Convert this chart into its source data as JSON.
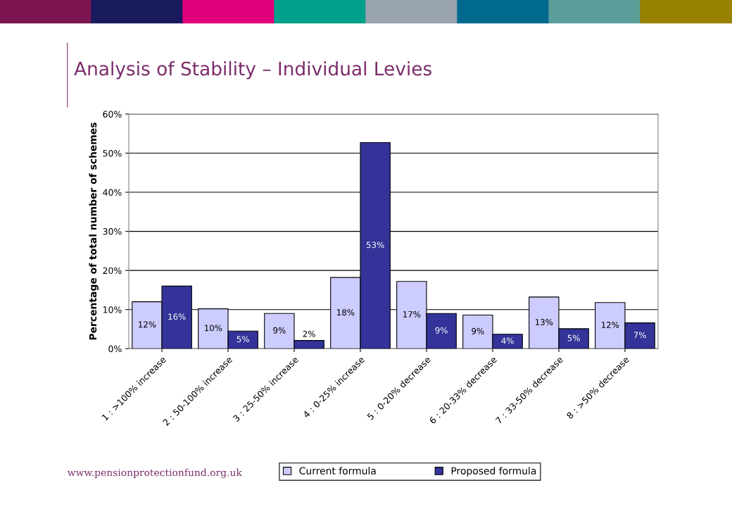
{
  "chart_data": {
    "type": "bar",
    "title": "Analysis of Stability – Individual Levies",
    "ylabel": "Percentage of total number of schemes",
    "categories": [
      "1 : >100% increase",
      "2 : 50-100% increase",
      "3 : 25-50% increase",
      "4 : 0-25% increase",
      "5 : 0-20% decrease",
      "6 : 20-33% decrease",
      "7 : 33-50% decrease",
      "8 : >50% decrease"
    ],
    "series": [
      {
        "name": "Current formula",
        "color": "#ccccff",
        "values": [
          12,
          10.2,
          9,
          18.2,
          17.2,
          8.6,
          13.2,
          11.8
        ],
        "value_labels": [
          "12%",
          "10%",
          "9%",
          "18%",
          "17%",
          "9%",
          "13%",
          "12%"
        ]
      },
      {
        "name": "Proposed formula",
        "color": "#333399",
        "values": [
          16,
          4.5,
          2.1,
          52.7,
          9,
          3.7,
          5.1,
          6.6
        ],
        "value_labels": [
          "16%",
          "5%",
          "2%",
          "53%",
          "9%",
          "4%",
          "5%",
          "7%"
        ]
      }
    ],
    "ylim": [
      0,
      60
    ],
    "yticks": [
      {
        "value": 0,
        "label": "0%"
      },
      {
        "value": 10,
        "label": "10%"
      },
      {
        "value": 20,
        "label": "20%"
      },
      {
        "value": 30,
        "label": "30%"
      },
      {
        "value": 40,
        "label": "40%"
      },
      {
        "value": 50,
        "label": "50%"
      },
      {
        "value": 60,
        "label": "60%"
      }
    ],
    "grid": "y",
    "legend": "bottom",
    "annotations": [
      "www.pensionprotectionfund.org.uk"
    ]
  }
}
